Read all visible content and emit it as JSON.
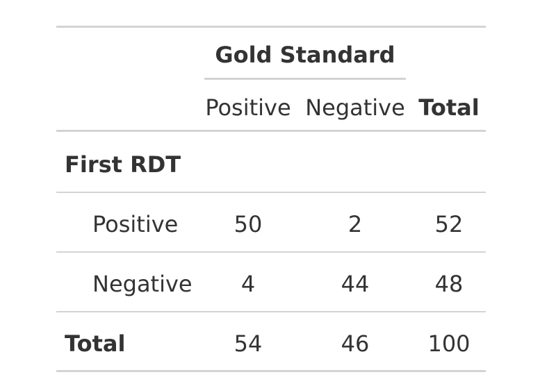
{
  "table": {
    "spanner": "Gold Standard",
    "col_headers": [
      "Positive",
      "Negative",
      "Total"
    ],
    "group_label": "First RDT",
    "rows": [
      {
        "label": "Positive",
        "values": [
          "50",
          "2",
          "52"
        ]
      },
      {
        "label": "Negative",
        "values": [
          "4",
          "44",
          "48"
        ]
      }
    ],
    "total_row": {
      "label": "Total",
      "values": [
        "54",
        "46",
        "100"
      ]
    }
  }
}
